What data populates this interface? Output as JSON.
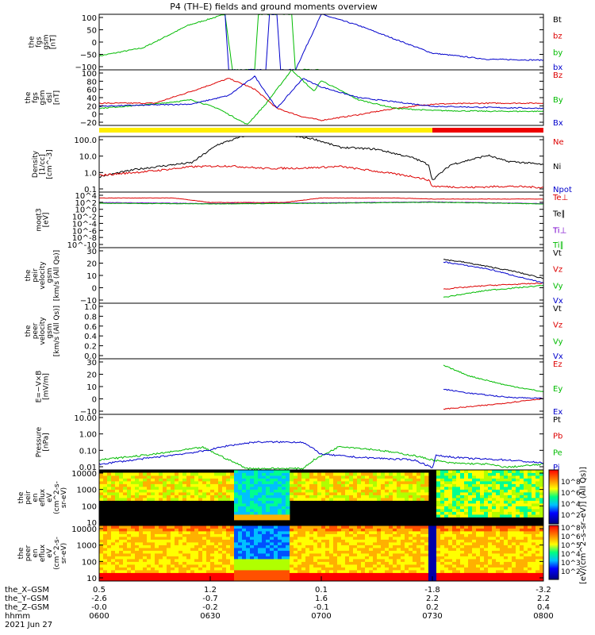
{
  "title": "P4 (TH–E) fields and ground moments overview",
  "x_axis": {
    "hhmm": [
      "0600",
      "0630",
      "0700",
      "0730",
      "0800"
    ],
    "X_GSM": [
      "0.5",
      "1.2",
      "0.1",
      "-1.8",
      "-3.2"
    ],
    "Y_GSM": [
      "-2.6",
      "-0.7",
      "1.6",
      "2.2",
      "2.2"
    ],
    "Z_GSM": [
      "-0.0",
      "-0.2",
      "-0.1",
      "0.2",
      "0.4"
    ],
    "row_labels": [
      "the_X–GSM",
      "the_Y–GSM",
      "the_Z–GSM",
      "hhmm",
      "2021 Jun 27"
    ]
  },
  "colorbar_label": "[eV/(cm^2–s–sr–eV)] (All Qs)]",
  "colorbar_ticks": [
    "10^8",
    "10^6",
    "10^4",
    "10^2",
    "10^8",
    "10^6",
    "10^5",
    "10^4",
    "10^3",
    "10^2"
  ],
  "chart_data": [
    {
      "id": "fgs_gsm",
      "type": "line",
      "ylabel": [
        "the",
        "fgs",
        "gsm",
        "[nT]"
      ],
      "yticks": [
        "100",
        "50",
        "0",
        "−50",
        "−100"
      ],
      "ylim": [
        -100,
        100
      ],
      "legend": [
        "Bt",
        "bz",
        "by",
        "bx"
      ],
      "colors": [
        "#000000",
        "#dd0000",
        "#00bb00",
        "#0000cc"
      ],
      "series": [
        {
          "name": "by",
          "x": [
            "06:00",
            "06:12",
            "06:24",
            "06:34",
            "06:36",
            "06:42",
            "06:43",
            "06:52",
            "06:53",
            "07:00"
          ],
          "y": [
            -50,
            -20,
            60,
            100,
            -100,
            -100,
            100,
            100,
            -100,
            -100
          ]
        },
        {
          "name": "bx",
          "x": [
            "06:34",
            "06:35",
            "06:45",
            "06:46",
            "06:48",
            "06:49",
            "06:53",
            "07:00",
            "07:10",
            "07:20",
            "07:30",
            "07:45",
            "08:00"
          ],
          "y": [
            100,
            -100,
            -100,
            100,
            100,
            -100,
            -100,
            100,
            60,
            10,
            -40,
            -62,
            -65
          ]
        }
      ]
    },
    {
      "id": "fgs_gsm_dsl",
      "type": "line",
      "ylabel": [
        "the",
        "fgs",
        "gsm",
        "dsl",
        "[nT]"
      ],
      "yticks": [
        "100",
        "80",
        "60",
        "40",
        "20",
        "0",
        "−20"
      ],
      "ylim": [
        -30,
        100
      ],
      "legend": [
        "Bz",
        "By",
        "Bx"
      ],
      "colors": [
        "#dd0000",
        "#00bb00",
        "#0000cc"
      ],
      "series": [
        {
          "name": "Bz",
          "x": [
            "06:00",
            "06:15",
            "06:25",
            "06:35",
            "06:42",
            "06:48",
            "06:55",
            "07:00",
            "07:10",
            "07:20",
            "07:30",
            "07:45",
            "08:00"
          ],
          "y": [
            22,
            22,
            50,
            80,
            55,
            10,
            -10,
            -18,
            -5,
            10,
            20,
            22,
            22
          ]
        },
        {
          "name": "By",
          "x": [
            "06:00",
            "06:15",
            "06:25",
            "06:32",
            "06:40",
            "06:45",
            "06:52",
            "06:58",
            "07:00",
            "07:10",
            "07:20",
            "07:30",
            "07:45",
            "08:00"
          ],
          "y": [
            10,
            20,
            30,
            10,
            -28,
            20,
            100,
            50,
            75,
            30,
            10,
            5,
            3,
            3
          ]
        },
        {
          "name": "Bx",
          "x": [
            "06:00",
            "06:15",
            "06:25",
            "06:35",
            "06:42",
            "06:48",
            "06:55",
            "07:00",
            "07:10",
            "07:20",
            "07:30",
            "07:45",
            "08:00"
          ],
          "y": [
            15,
            18,
            20,
            40,
            85,
            10,
            80,
            60,
            35,
            25,
            15,
            12,
            10
          ]
        }
      ]
    },
    {
      "id": "mode_bar",
      "type": "bar",
      "segments": [
        {
          "x0": "06:00",
          "x1": "07:30",
          "color": "#ffee00"
        },
        {
          "x0": "07:30",
          "x1": "08:00",
          "color": "#ee0000"
        }
      ]
    },
    {
      "id": "density",
      "type": "line",
      "ylabel": [
        "Density",
        "[1/cc]",
        "[cm^-3]"
      ],
      "yticks": [
        "100.0",
        "10.0",
        "1.0",
        "0.1"
      ],
      "yscale": "log",
      "ylim": [
        0.05,
        200
      ],
      "legend": [
        "Ne",
        "Ni",
        "Npot"
      ],
      "colors": [
        "#dd0000",
        "#000000",
        "#0000cc"
      ],
      "series": [
        {
          "name": "Ni",
          "x": [
            "06:00",
            "06:10",
            "06:20",
            "06:25",
            "06:32",
            "06:40",
            "06:50",
            "06:58",
            "07:05",
            "07:15",
            "07:25",
            "07:29",
            "07:30",
            "07:35",
            "07:40",
            "07:45",
            "07:50",
            "07:55",
            "08:00"
          ],
          "y": [
            0.5,
            1.5,
            3,
            4,
            60,
            250,
            250,
            140,
            40,
            30,
            8,
            3,
            0.3,
            3,
            6,
            12,
            5,
            4,
            3
          ]
        },
        {
          "name": "Ne",
          "x": [
            "06:00",
            "06:15",
            "06:25",
            "06:35",
            "06:45",
            "06:55",
            "07:05",
            "07:15",
            "07:25",
            "07:29",
            "07:30",
            "07:40",
            "07:50",
            "08:00"
          ],
          "y": [
            0.6,
            1.2,
            2.2,
            2.5,
            1.7,
            1.8,
            2.3,
            1.1,
            0.5,
            0.3,
            0.12,
            0.1,
            0.12,
            0.1
          ]
        }
      ]
    },
    {
      "id": "temperature",
      "type": "line",
      "ylabel": [
        "moqt3",
        "[eV]"
      ],
      "yticks": [
        "10^4",
        "10^2",
        "10^0",
        "10^-2",
        "10^-4",
        "10^-6",
        "10^-8",
        "10^-10"
      ],
      "yscale": "log",
      "ylim": [
        1e-11,
        100000.0
      ],
      "legend": [
        "Te⊥",
        "Te∥",
        "Ti⊥",
        "Ti∥"
      ],
      "colors": [
        "#dd0000",
        "#000000",
        "#7700cc",
        "#00bb00"
      ],
      "series": [
        {
          "name": "Te⊥",
          "x": [
            "06:00",
            "06:20",
            "06:30",
            "06:50",
            "07:00",
            "07:20",
            "07:30",
            "08:00"
          ],
          "y": [
            2000,
            2000,
            100,
            100,
            2000,
            2000,
            1000,
            1000
          ]
        },
        {
          "name": "Ti⊥",
          "x": [
            "06:00",
            "06:30",
            "07:00",
            "07:30",
            "08:00"
          ],
          "y": [
            100,
            50,
            80,
            150,
            50
          ]
        },
        {
          "name": "Ti∥",
          "x": [
            "06:00",
            "06:30",
            "07:00",
            "07:30",
            "08:00"
          ],
          "y": [
            60,
            40,
            60,
            120,
            40
          ]
        }
      ]
    },
    {
      "id": "peir_velocity",
      "type": "line",
      "ylabel": [
        "the",
        "peir",
        "velocity",
        "gsm",
        "[km/s (All Qs)]"
      ],
      "yticks": [
        "30",
        "20",
        "10",
        "0",
        "−10"
      ],
      "ylim": [
        -15,
        32
      ],
      "legend": [
        "Vt",
        "Vz",
        "Vy",
        "Vx"
      ],
      "colors": [
        "#000000",
        "#dd0000",
        "#00bb00",
        "#0000cc"
      ],
      "series": [
        {
          "name": "Vt",
          "x": [
            "07:33",
            "07:38",
            "07:45",
            "07:52",
            "08:00"
          ],
          "y": [
            22,
            20,
            16,
            12,
            6
          ]
        },
        {
          "name": "Vz",
          "x": [
            "07:33",
            "07:45",
            "08:00"
          ],
          "y": [
            -3,
            0,
            2
          ]
        },
        {
          "name": "Vy",
          "x": [
            "07:33",
            "07:45",
            "08:00"
          ],
          "y": [
            -10,
            -4,
            0
          ]
        },
        {
          "name": "Vx",
          "x": [
            "07:33",
            "07:45",
            "08:00"
          ],
          "y": [
            20,
            14,
            2
          ]
        }
      ]
    },
    {
      "id": "peer_velocity",
      "type": "line",
      "ylabel": [
        "the",
        "peer",
        "velocity",
        "gsm",
        "[km/s (All Qs)]"
      ],
      "yticks": [
        "1.0",
        "0.8",
        "0.6",
        "0.4",
        "0.2",
        "0.0"
      ],
      "ylim": [
        0,
        1
      ],
      "legend": [
        "Vt",
        "Vz",
        "Vy",
        "Vx"
      ],
      "colors": [
        "#000000",
        "#dd0000",
        "#00bb00",
        "#0000cc"
      ],
      "series": []
    },
    {
      "id": "efield",
      "type": "line",
      "ylabel": [
        "E=−V×B",
        "[mV/m]"
      ],
      "yticks": [
        "30",
        "20",
        "10",
        "0",
        "−10"
      ],
      "ylim": [
        -12,
        30
      ],
      "legend": [
        "Ez",
        "Ey",
        "Ex"
      ],
      "colors": [
        "#dd0000",
        "#00bb00",
        "#0000cc"
      ],
      "series": [
        {
          "name": "Ey",
          "x": [
            "07:33",
            "07:40",
            "07:50",
            "08:00"
          ],
          "y": [
            25,
            17,
            10,
            5
          ]
        },
        {
          "name": "Ex",
          "x": [
            "07:33",
            "07:40",
            "07:50",
            "08:00"
          ],
          "y": [
            7,
            4,
            1,
            0
          ]
        },
        {
          "name": "Ez",
          "x": [
            "07:33",
            "07:45",
            "08:00"
          ],
          "y": [
            -8,
            -5,
            0
          ]
        }
      ]
    },
    {
      "id": "pressure",
      "type": "line",
      "ylabel": [
        "Pressure",
        "[nPa]"
      ],
      "yticks": [
        "10.00",
        "1.00",
        "0.10",
        "0.01"
      ],
      "yscale": "log",
      "ylim": [
        0.004,
        30
      ],
      "legend": [
        "Pt",
        "Pb",
        "Pe",
        "Pi"
      ],
      "colors": [
        "#000000",
        "#dd0000",
        "#00bb00",
        "#0000cc"
      ],
      "series": [
        {
          "name": "Pe",
          "x": [
            "06:00",
            "06:15",
            "06:28",
            "06:35",
            "06:40",
            "06:55",
            "06:58",
            "07:05",
            "07:15",
            "07:25",
            "07:30",
            "07:35",
            "07:45",
            "07:50",
            "08:00"
          ],
          "y": [
            0.02,
            0.05,
            0.15,
            0.02,
            0.005,
            0.005,
            0.02,
            0.18,
            0.1,
            0.04,
            0.02,
            0.012,
            0.01,
            0.006,
            0.01
          ]
        },
        {
          "name": "Pi",
          "x": [
            "06:00",
            "06:15",
            "06:28",
            "06:35",
            "06:42",
            "06:55",
            "07:00",
            "07:10",
            "07:25",
            "07:30",
            "07:31",
            "07:40",
            "07:50",
            "08:00"
          ],
          "y": [
            0.01,
            0.03,
            0.08,
            0.2,
            0.35,
            0.35,
            0.05,
            0.03,
            0.02,
            0.006,
            0.04,
            0.025,
            0.02,
            0.012
          ]
        }
      ]
    },
    {
      "id": "peir_spectrogram",
      "type": "heatmap",
      "ylabel": [
        "the",
        "peir",
        "en",
        "eflux",
        "eV",
        "(cm^2-s-",
        "sr-eV)"
      ],
      "yticks": [
        "10000",
        "1000",
        "100",
        "10"
      ],
      "ylim": [
        5,
        25000
      ],
      "yscale": "log"
    },
    {
      "id": "peer_spectrogram",
      "type": "heatmap",
      "ylabel": [
        "the",
        "peer",
        "en",
        "eflux",
        "eV",
        "(cm^2-s-",
        "sr-eV)"
      ],
      "yticks": [
        "10000",
        "1000",
        "100",
        "10"
      ],
      "ylim": [
        5,
        25000
      ],
      "yscale": "log"
    }
  ]
}
